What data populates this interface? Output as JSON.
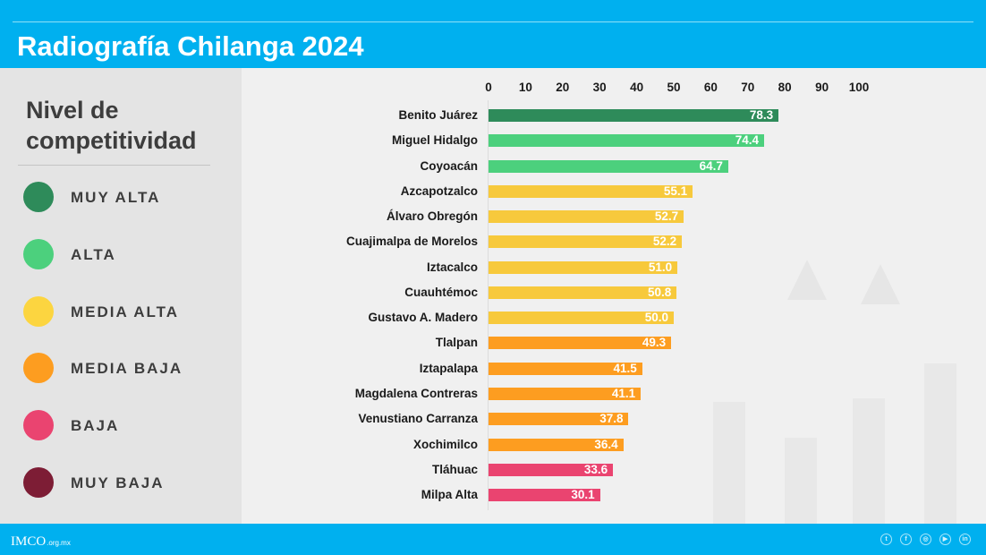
{
  "header": {
    "title": "Radiografía Chilanga 2024"
  },
  "legend": {
    "title_line1": "Nivel de",
    "title_line2": "competitividad",
    "items": [
      {
        "label": "MUY ALTA",
        "color": "#2e8b5a"
      },
      {
        "label": "ALTA",
        "color": "#4cd07d"
      },
      {
        "label": "MEDIA ALTA",
        "color": "#fcd540"
      },
      {
        "label": "MEDIA BAJA",
        "color": "#fd9d20"
      },
      {
        "label": "BAJA",
        "color": "#ea4470"
      },
      {
        "label": "MUY BAJA",
        "color": "#7d1d35"
      }
    ]
  },
  "chart_data": {
    "type": "bar",
    "orientation": "horizontal",
    "title": "",
    "xlabel": "",
    "ylabel": "",
    "xlim": [
      0,
      100
    ],
    "x_ticks": [
      "0",
      "10",
      "20",
      "30",
      "40",
      "50",
      "60",
      "70",
      "80",
      "90",
      "100"
    ],
    "x_axis_position": "top",
    "grid": false,
    "legend_position": "left",
    "categories": [
      "Benito Juárez",
      "Miguel Hidalgo",
      "Coyoacán",
      "Azcapotzalco",
      "Álvaro Obregón",
      "Cuajimalpa de Morelos",
      "Iztacalco",
      "Cuauhtémoc",
      "Gustavo A. Madero",
      "Tlalpan",
      "Iztapalapa",
      "Magdalena Contreras",
      "Venustiano Carranza",
      "Xochimilco",
      "Tláhuac",
      "Milpa Alta"
    ],
    "values": [
      78.3,
      74.4,
      64.7,
      55.1,
      52.7,
      52.2,
      51.0,
      50.8,
      50.0,
      49.3,
      41.5,
      41.1,
      37.8,
      36.4,
      33.6,
      30.1
    ],
    "value_labels": [
      "78.3",
      "74.4",
      "64.7",
      "55.1",
      "52.7",
      "52.2",
      "51.0",
      "50.8",
      "50.0",
      "49.3",
      "41.5",
      "41.1",
      "37.8",
      "36.4",
      "33.6",
      "30.1"
    ],
    "levels": [
      "MUY ALTA",
      "ALTA",
      "ALTA",
      "MEDIA ALTA",
      "MEDIA ALTA",
      "MEDIA ALTA",
      "MEDIA ALTA",
      "MEDIA ALTA",
      "MEDIA ALTA",
      "MEDIA BAJA",
      "MEDIA BAJA",
      "MEDIA BAJA",
      "MEDIA BAJA",
      "MEDIA BAJA",
      "BAJA",
      "BAJA"
    ],
    "bar_colors": [
      "#2e8b5a",
      "#4cd07d",
      "#4cd07d",
      "#f7c93c",
      "#f7c93c",
      "#f7c93c",
      "#f7c93c",
      "#f7c93c",
      "#f7c93c",
      "#fd9d20",
      "#fd9d20",
      "#fd9d20",
      "#fd9d20",
      "#fd9d20",
      "#ea4470",
      "#ea4470"
    ]
  },
  "footer": {
    "logo_main": "IMCO",
    "logo_sub": ".org.mx",
    "social_icons": [
      {
        "name": "twitter-icon",
        "glyph": "t"
      },
      {
        "name": "facebook-icon",
        "glyph": "f"
      },
      {
        "name": "instagram-icon",
        "glyph": "◎"
      },
      {
        "name": "youtube-icon",
        "glyph": "▶"
      },
      {
        "name": "linkedin-icon",
        "glyph": "in"
      }
    ]
  }
}
